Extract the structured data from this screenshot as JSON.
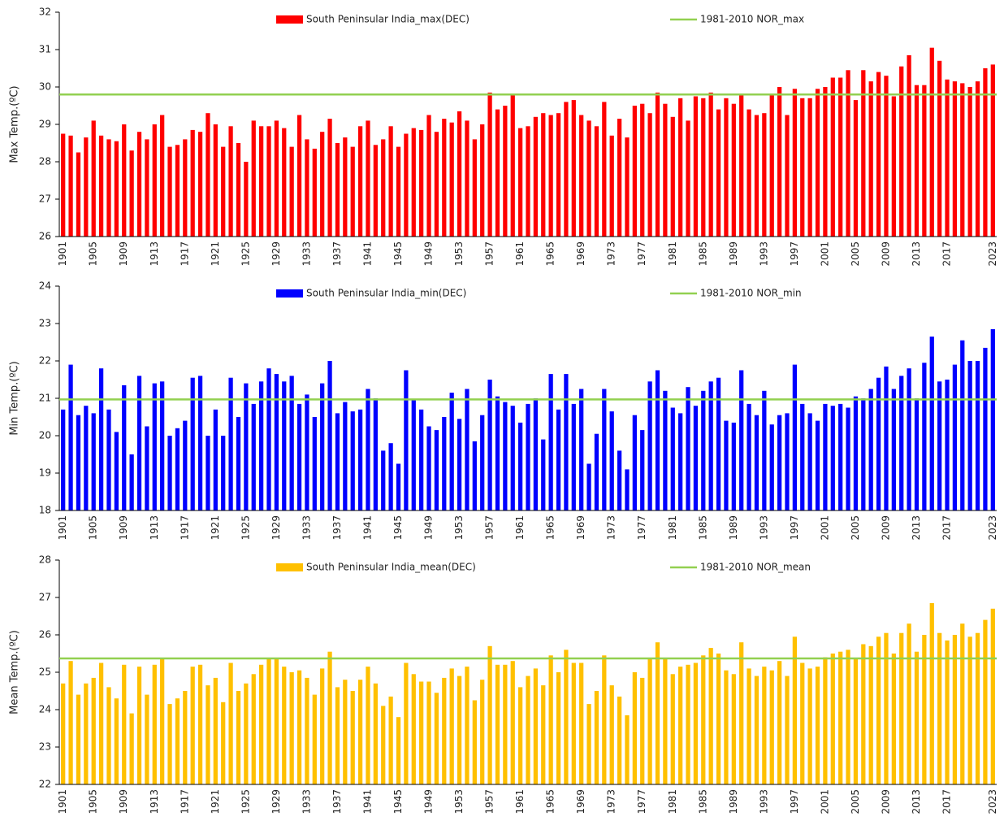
{
  "chart_data": [
    {
      "type": "bar",
      "ylabel": "Max Temp.(ºC)",
      "ylim": [
        26,
        32
      ],
      "yticks": [
        26,
        27,
        28,
        29,
        30,
        31,
        32
      ],
      "categories": [
        "1901",
        null,
        null,
        null,
        "1905",
        null,
        null,
        null,
        "1909",
        null,
        null,
        null,
        "1913",
        null,
        null,
        null,
        "1917",
        null,
        null,
        null,
        "1921",
        null,
        null,
        null,
        "1925",
        null,
        null,
        null,
        "1929",
        null,
        null,
        null,
        "1933",
        null,
        null,
        null,
        "1937",
        null,
        null,
        null,
        "1941",
        null,
        null,
        null,
        "1945",
        null,
        null,
        null,
        "1949",
        null,
        null,
        null,
        "1953",
        null,
        null,
        null,
        "1957",
        null,
        null,
        null,
        "1961",
        null,
        null,
        null,
        "1965",
        null,
        null,
        null,
        "1969",
        null,
        null,
        null,
        "1973",
        null,
        null,
        null,
        "1977",
        null,
        null,
        null,
        "1981",
        null,
        null,
        null,
        "1985",
        null,
        null,
        null,
        "1989",
        null,
        null,
        null,
        "1993",
        null,
        null,
        null,
        "1997",
        null,
        null,
        null,
        "2001",
        null,
        null,
        null,
        "2005",
        null,
        null,
        null,
        "2009",
        null,
        null,
        null,
        "2013",
        null,
        null,
        null,
        "2017",
        null,
        null,
        null,
        null,
        null,
        "2023"
      ],
      "series": [
        {
          "name": "South Peninsular India_max(DEC)",
          "color": "#ff0000",
          "values": [
            28.75,
            28.7,
            28.25,
            28.65,
            29.1,
            28.7,
            28.6,
            28.55,
            29.0,
            28.3,
            28.8,
            28.6,
            29.0,
            29.25,
            28.4,
            28.45,
            28.6,
            28.85,
            28.8,
            29.3,
            29.0,
            28.4,
            28.95,
            28.5,
            28.0,
            29.1,
            28.95,
            28.95,
            29.1,
            28.9,
            28.4,
            29.25,
            28.6,
            28.35,
            28.8,
            29.15,
            28.5,
            28.65,
            28.4,
            28.95,
            29.1,
            28.45,
            28.6,
            28.95,
            28.4,
            28.75,
            28.9,
            28.85,
            29.25,
            28.8,
            29.15,
            29.05,
            29.35,
            29.1,
            28.6,
            29.0,
            29.85,
            29.4,
            29.5,
            29.8,
            28.9,
            28.95,
            29.2,
            29.3,
            29.25,
            29.3,
            29.6,
            29.65,
            29.25,
            29.1,
            28.95,
            29.6,
            28.7,
            29.15,
            28.65,
            29.5,
            29.55,
            29.3,
            29.85,
            29.55,
            29.2,
            29.7,
            29.1,
            29.75,
            29.7,
            29.85,
            29.4,
            29.7,
            29.55,
            29.8,
            29.4,
            29.25,
            29.3,
            29.8,
            30.0,
            29.25,
            29.95,
            29.7,
            29.7,
            29.95,
            30.0,
            30.25,
            30.25,
            30.45,
            29.65,
            30.45,
            30.15,
            30.4,
            30.3,
            29.75,
            30.55,
            30.85,
            30.05,
            30.05,
            31.05,
            30.7,
            30.2,
            30.15,
            30.1,
            30.0,
            30.15,
            30.5,
            30.6
          ]
        }
      ],
      "normal": {
        "name": "1981-2010 NOR_max",
        "color": "#92d050",
        "value": 29.8
      }
    },
    {
      "type": "bar",
      "ylabel": "Min Temp.(ºC)",
      "ylim": [
        18,
        24
      ],
      "yticks": [
        18,
        19,
        20,
        21,
        22,
        23,
        24
      ],
      "categories": [
        "1901",
        null,
        null,
        null,
        "1905",
        null,
        null,
        null,
        "1909",
        null,
        null,
        null,
        "1913",
        null,
        null,
        null,
        "1917",
        null,
        null,
        null,
        "1921",
        null,
        null,
        null,
        "1925",
        null,
        null,
        null,
        "1929",
        null,
        null,
        null,
        "1933",
        null,
        null,
        null,
        "1937",
        null,
        null,
        null,
        "1941",
        null,
        null,
        null,
        "1945",
        null,
        null,
        null,
        "1949",
        null,
        null,
        null,
        "1953",
        null,
        null,
        null,
        "1957",
        null,
        null,
        null,
        "1961",
        null,
        null,
        null,
        "1965",
        null,
        null,
        null,
        "1969",
        null,
        null,
        null,
        "1973",
        null,
        null,
        null,
        "1977",
        null,
        null,
        null,
        "1981",
        null,
        null,
        null,
        "1985",
        null,
        null,
        null,
        "1989",
        null,
        null,
        null,
        "1993",
        null,
        null,
        null,
        "1997",
        null,
        null,
        null,
        "2001",
        null,
        null,
        null,
        "2005",
        null,
        null,
        null,
        "2009",
        null,
        null,
        null,
        "2013",
        null,
        null,
        null,
        "2017",
        null,
        null,
        null,
        null,
        null,
        "2023"
      ],
      "series": [
        {
          "name": "South Peninsular India_min(DEC)",
          "color": "#0000ff",
          "values": [
            20.7,
            21.9,
            20.55,
            20.8,
            20.6,
            21.8,
            20.7,
            20.1,
            21.35,
            19.5,
            21.6,
            20.25,
            21.4,
            21.45,
            20.0,
            20.2,
            20.4,
            21.55,
            21.6,
            20.0,
            20.7,
            20.0,
            21.55,
            20.5,
            21.4,
            20.85,
            21.45,
            21.8,
            21.65,
            21.45,
            21.6,
            20.85,
            21.1,
            20.5,
            21.4,
            22.0,
            20.6,
            20.9,
            20.65,
            20.7,
            21.25,
            21.0,
            19.6,
            19.8,
            19.25,
            21.75,
            20.95,
            20.7,
            20.25,
            20.15,
            20.5,
            21.15,
            20.45,
            21.25,
            19.85,
            20.55,
            21.5,
            21.05,
            20.9,
            20.8,
            20.35,
            20.85,
            21.0,
            19.9,
            21.65,
            20.7,
            21.65,
            20.85,
            21.25,
            19.25,
            20.05,
            21.25,
            20.65,
            19.6,
            19.1,
            20.55,
            20.15,
            21.45,
            21.75,
            21.2,
            20.75,
            20.6,
            21.3,
            20.8,
            21.2,
            21.45,
            21.55,
            20.4,
            20.35,
            21.75,
            20.85,
            20.55,
            21.2,
            20.3,
            20.55,
            20.6,
            21.9,
            20.85,
            20.6,
            20.4,
            20.85,
            20.8,
            20.85,
            20.75,
            21.05,
            21.0,
            21.25,
            21.55,
            21.85,
            21.25,
            21.6,
            21.8,
            21.0,
            21.95,
            22.65,
            21.45,
            21.5,
            21.9,
            22.55,
            22.0,
            22.0,
            22.35,
            22.85
          ]
        }
      ],
      "normal": {
        "name": "1981-2010 NOR_min",
        "color": "#92d050",
        "value": 20.97
      }
    },
    {
      "type": "bar",
      "ylabel": "Mean Temp.(ºC)",
      "ylim": [
        22,
        28
      ],
      "yticks": [
        22,
        23,
        24,
        25,
        26,
        27,
        28
      ],
      "categories": [
        "1901",
        null,
        null,
        null,
        "1905",
        null,
        null,
        null,
        "1909",
        null,
        null,
        null,
        "1913",
        null,
        null,
        null,
        "1917",
        null,
        null,
        null,
        "1921",
        null,
        null,
        null,
        "1925",
        null,
        null,
        null,
        "1929",
        null,
        null,
        null,
        "1933",
        null,
        null,
        null,
        "1937",
        null,
        null,
        null,
        "1941",
        null,
        null,
        null,
        "1945",
        null,
        null,
        null,
        "1949",
        null,
        null,
        null,
        "1953",
        null,
        null,
        null,
        "1957",
        null,
        null,
        null,
        "1961",
        null,
        null,
        null,
        "1965",
        null,
        null,
        null,
        "1969",
        null,
        null,
        null,
        "1973",
        null,
        null,
        null,
        "1977",
        null,
        null,
        null,
        "1981",
        null,
        null,
        null,
        "1985",
        null,
        null,
        null,
        "1989",
        null,
        null,
        null,
        "1993",
        null,
        null,
        null,
        "1997",
        null,
        null,
        null,
        "2001",
        null,
        null,
        null,
        "2005",
        null,
        null,
        null,
        "2009",
        null,
        null,
        null,
        "2013",
        null,
        null,
        null,
        "2017",
        null,
        null,
        null,
        null,
        null,
        "2023"
      ],
      "series": [
        {
          "name": "South Peninsular India_mean(DEC)",
          "color": "#ffc000",
          "values": [
            24.7,
            25.3,
            24.4,
            24.7,
            24.85,
            25.25,
            24.6,
            24.3,
            25.2,
            23.9,
            25.15,
            24.4,
            25.2,
            25.35,
            24.15,
            24.3,
            24.5,
            25.15,
            25.2,
            24.65,
            24.85,
            24.2,
            25.25,
            24.5,
            24.7,
            24.95,
            25.2,
            25.35,
            25.35,
            25.15,
            25.0,
            25.05,
            24.85,
            24.4,
            25.1,
            25.55,
            24.6,
            24.8,
            24.5,
            24.8,
            25.15,
            24.7,
            24.1,
            24.35,
            23.8,
            25.25,
            24.95,
            24.75,
            24.75,
            24.45,
            24.85,
            25.1,
            24.9,
            25.15,
            24.25,
            24.8,
            25.7,
            25.2,
            25.2,
            25.3,
            24.6,
            24.9,
            25.1,
            24.65,
            25.45,
            25.0,
            25.6,
            25.25,
            25.25,
            24.15,
            24.5,
            25.45,
            24.65,
            24.35,
            23.85,
            25.0,
            24.85,
            25.35,
            25.8,
            25.35,
            24.95,
            25.15,
            25.2,
            25.25,
            25.45,
            25.65,
            25.5,
            25.05,
            24.95,
            25.8,
            25.1,
            24.9,
            25.15,
            25.05,
            25.3,
            24.9,
            25.95,
            25.25,
            25.1,
            25.15,
            25.4,
            25.5,
            25.55,
            25.6,
            25.35,
            25.75,
            25.7,
            25.95,
            26.05,
            25.5,
            26.05,
            26.3,
            25.55,
            26.0,
            26.85,
            26.05,
            25.85,
            26.0,
            26.3,
            25.95,
            26.05,
            26.4,
            26.7
          ]
        }
      ],
      "normal": {
        "name": "1981-2010 NOR_mean",
        "color": "#92d050",
        "value": 25.37
      }
    }
  ]
}
